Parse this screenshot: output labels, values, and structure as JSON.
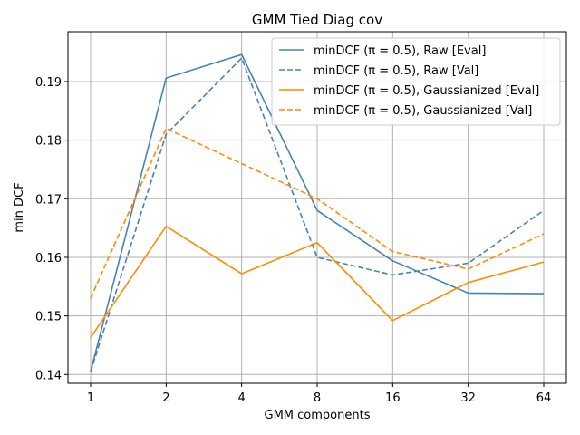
{
  "chart_data": {
    "type": "line",
    "title": "GMM Tied Diag cov",
    "xlabel": "GMM components",
    "ylabel": "min DCF",
    "categories": [
      "1",
      "2",
      "4",
      "8",
      "16",
      "32",
      "64"
    ],
    "ylim": [
      0.1385,
      0.1985
    ],
    "yticks": [
      0.14,
      0.15,
      0.16,
      0.17,
      0.18,
      0.19
    ],
    "ytick_labels": [
      "0.14",
      "0.15",
      "0.16",
      "0.17",
      "0.18",
      "0.19"
    ],
    "grid": true,
    "legend_position": "top-right",
    "series": [
      {
        "name": "minDCF (π = 0.5), Raw [Eval]",
        "color": "#4682b4",
        "dash": "solid",
        "values": [
          0.1405,
          0.1906,
          0.1946,
          0.168,
          0.1594,
          0.1539,
          0.1538
        ]
      },
      {
        "name": "minDCF (π = 0.5), Raw [Val]",
        "color": "#4682b4",
        "dash": "dashed",
        "values": [
          0.1405,
          0.181,
          0.194,
          0.16,
          0.157,
          0.159,
          0.168
        ]
      },
      {
        "name": "minDCF (π = 0.5), Gaussianized [Eval]",
        "color": "#ff8c00",
        "dash": "solid",
        "values": [
          0.1463,
          0.1653,
          0.1572,
          0.1625,
          0.1492,
          0.1557,
          0.1592
        ]
      },
      {
        "name": "minDCF (π = 0.5), Gaussianized [Val]",
        "color": "#ff8c00",
        "dash": "dashed",
        "values": [
          0.153,
          0.182,
          0.176,
          0.17,
          0.161,
          0.158,
          0.164
        ]
      }
    ]
  }
}
